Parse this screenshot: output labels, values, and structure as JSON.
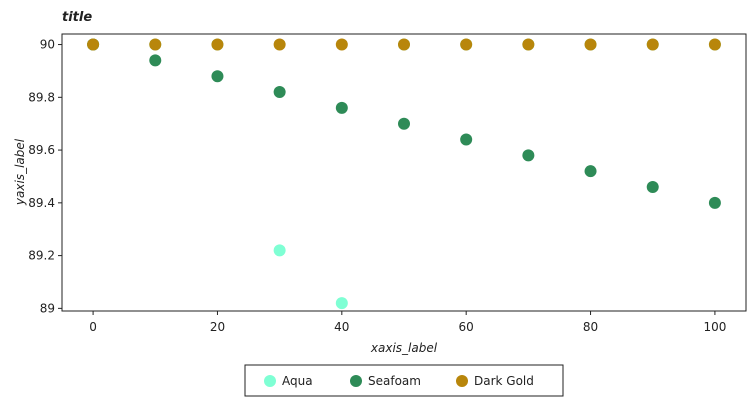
{
  "chart_data": {
    "type": "scatter",
    "title": "title",
    "xlabel": "xaxis_label",
    "ylabel": "yaxis_label",
    "xlim": [
      -5,
      105
    ],
    "ylim": [
      88.99,
      90.04
    ],
    "x_ticks": [
      0,
      20,
      40,
      60,
      80,
      100
    ],
    "y_ticks": [
      89,
      89.2,
      89.4,
      89.6,
      89.8,
      90
    ],
    "y_tick_labels": [
      "89",
      "89.2",
      "89.4",
      "89.6",
      "89.8",
      "90"
    ],
    "legend_position": "bottom-center",
    "series": [
      {
        "name": "Aqua",
        "color": "#7fffd4",
        "x": [
          0,
          10,
          20,
          30,
          40,
          50,
          60,
          70,
          80,
          90,
          100
        ],
        "y": [
          90,
          90,
          90,
          89.22,
          89.02,
          90,
          90,
          90,
          90,
          90,
          90
        ]
      },
      {
        "name": "Seafoam",
        "color": "#2e8b57",
        "x": [
          0,
          10,
          20,
          30,
          40,
          50,
          60,
          70,
          80,
          90,
          100
        ],
        "y": [
          90,
          89.94,
          89.88,
          89.82,
          89.76,
          89.7,
          89.64,
          89.58,
          89.52,
          89.46,
          89.4
        ]
      },
      {
        "name": "Dark Gold",
        "color": "#b8860b",
        "x": [
          0,
          10,
          20,
          30,
          40,
          50,
          60,
          70,
          80,
          90,
          100
        ],
        "y": [
          90,
          90,
          90,
          90,
          90,
          90,
          90,
          90,
          90,
          90,
          90
        ]
      }
    ]
  }
}
